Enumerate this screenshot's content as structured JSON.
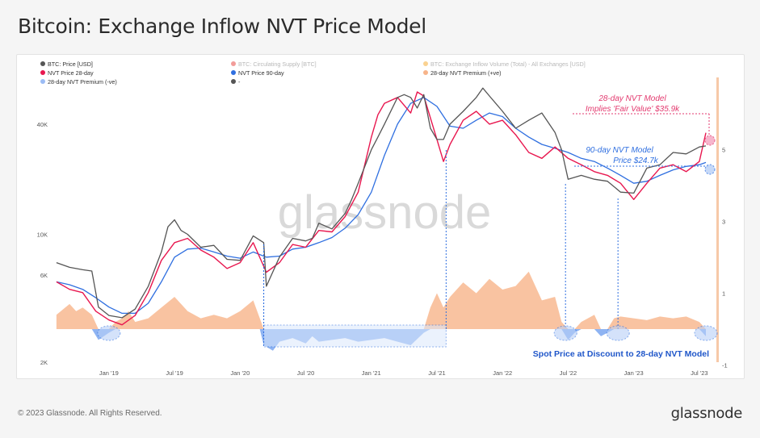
{
  "title": "Bitcoin: Exchange Inflow NVT Price Model",
  "footer": {
    "copyright": "© 2023 Glassnode. All Rights Reserved.",
    "brand": "glassnode"
  },
  "watermark": "glassnode",
  "colors": {
    "price": "#555555",
    "nvt28": "#e8174f",
    "nvt90": "#2f6fe0",
    "premium_pos": "#f7b48a",
    "premium_neg": "#7aa6f0",
    "annotation_red": "#e33a6f",
    "annotation_blue": "#2f6fe0"
  },
  "chart_data": {
    "type": "line",
    "x_ticks": [
      "Jan '19",
      "Jul '19",
      "Jan '20",
      "Jul '20",
      "Jan '21",
      "Jul '21",
      "Jan '22",
      "Jul '22",
      "Jan '23",
      "Jul '23"
    ],
    "y_left_ticks": [
      "2K",
      "6K",
      "10K",
      "40K"
    ],
    "y_right_ticks": [
      "-1",
      "1",
      "3",
      "5"
    ],
    "y_left_scale": "log",
    "legend": [
      {
        "label": "BTC: Price [USD]",
        "color": "#555555",
        "muted": false
      },
      {
        "label": "BTC: Circulating Supply [BTC]",
        "color": "#e53935",
        "muted": true
      },
      {
        "label": "BTC: Exchange Inflow Volume (Total) - All Exchanges [USD]",
        "color": "#f5a623",
        "muted": true
      },
      {
        "label": "NVT Price 28-day",
        "color": "#e8174f",
        "muted": false
      },
      {
        "label": "NVT Price 90-day",
        "color": "#2f6fe0",
        "muted": false
      },
      {
        "label": "28-day NVT Premium (+ve)",
        "color": "#f7b48a",
        "muted": false
      },
      {
        "label": "28-day NVT Premium (-ve)",
        "color": "#9bbcf5",
        "muted": false
      },
      {
        "label": "-",
        "color": "#555555",
        "muted": false
      }
    ],
    "annotations": {
      "nvt28_line1": "28-day NVT Model",
      "nvt28_line2": "Implies 'Fair Value' $35.9k",
      "nvt90_line1": "90-day NVT Model",
      "nvt90_line2": "Price $24.7k",
      "discount": "Spot Price at Discount to 28-day NVT Model"
    },
    "series": [
      {
        "name": "BTC: Price [USD]",
        "t": [
          2018.6,
          2018.7,
          2018.8,
          2018.87,
          2018.92,
          2019.0,
          2019.1,
          2019.2,
          2019.3,
          2019.4,
          2019.45,
          2019.5,
          2019.55,
          2019.6,
          2019.7,
          2019.8,
          2019.9,
          2020.0,
          2020.1,
          2020.18,
          2020.2,
          2020.3,
          2020.4,
          2020.5,
          2020.55,
          2020.6,
          2020.7,
          2020.8,
          2020.85,
          2020.9,
          2021.0,
          2021.05,
          2021.1,
          2021.2,
          2021.25,
          2021.3,
          2021.35,
          2021.4,
          2021.45,
          2021.5,
          2021.55,
          2021.6,
          2021.7,
          2021.8,
          2021.85,
          2021.9,
          2022.0,
          2022.1,
          2022.2,
          2022.3,
          2022.4,
          2022.45,
          2022.5,
          2022.6,
          2022.7,
          2022.8,
          2022.9,
          2023.0,
          2023.1,
          2023.2,
          2023.3,
          2023.4,
          2023.5,
          2023.55
        ],
        "values": [
          7000,
          6600,
          6400,
          6300,
          4000,
          3600,
          3500,
          3900,
          5200,
          8000,
          11000,
          12000,
          10500,
          10000,
          8500,
          8700,
          7300,
          7200,
          9800,
          9000,
          5200,
          7500,
          9500,
          9200,
          9500,
          11500,
          10700,
          13000,
          15500,
          19000,
          29000,
          34000,
          40000,
          56000,
          58000,
          56000,
          49000,
          58000,
          38000,
          33000,
          33000,
          40000,
          47000,
          56000,
          63000,
          57000,
          47000,
          38000,
          42000,
          46000,
          36000,
          29000,
          20000,
          21000,
          20000,
          19500,
          17000,
          16800,
          23000,
          24000,
          28000,
          27500,
          30000,
          30400
        ]
      },
      {
        "name": "NVT Price 28-day",
        "t": [
          2018.6,
          2018.7,
          2018.8,
          2018.9,
          2019.0,
          2019.1,
          2019.2,
          2019.3,
          2019.4,
          2019.5,
          2019.6,
          2019.7,
          2019.8,
          2019.9,
          2020.0,
          2020.1,
          2020.2,
          2020.3,
          2020.4,
          2020.5,
          2020.6,
          2020.7,
          2020.8,
          2020.9,
          2021.0,
          2021.05,
          2021.1,
          2021.2,
          2021.3,
          2021.35,
          2021.4,
          2021.5,
          2021.55,
          2021.6,
          2021.7,
          2021.8,
          2021.9,
          2022.0,
          2022.1,
          2022.2,
          2022.3,
          2022.4,
          2022.5,
          2022.6,
          2022.7,
          2022.8,
          2022.9,
          2023.0,
          2023.1,
          2023.2,
          2023.3,
          2023.4,
          2023.5,
          2023.55
        ],
        "values": [
          5500,
          5000,
          4800,
          3800,
          3400,
          3200,
          3600,
          4800,
          7200,
          9000,
          9500,
          8200,
          7500,
          6500,
          7000,
          9000,
          6200,
          7000,
          8800,
          8500,
          10500,
          10300,
          12500,
          17000,
          34000,
          45000,
          52000,
          56000,
          46000,
          60000,
          57000,
          33000,
          25000,
          31000,
          42000,
          47000,
          40000,
          42000,
          35000,
          28000,
          26000,
          30000,
          26000,
          24000,
          22000,
          21000,
          19000,
          15500,
          19000,
          23000,
          24000,
          22000,
          25000,
          35900
        ]
      },
      {
        "name": "NVT Price 90-day",
        "t": [
          2018.6,
          2018.7,
          2018.8,
          2018.9,
          2019.0,
          2019.1,
          2019.2,
          2019.3,
          2019.4,
          2019.5,
          2019.6,
          2019.7,
          2019.8,
          2019.9,
          2020.0,
          2020.1,
          2020.2,
          2020.3,
          2020.4,
          2020.5,
          2020.6,
          2020.7,
          2020.8,
          2020.9,
          2021.0,
          2021.1,
          2021.2,
          2021.3,
          2021.4,
          2021.5,
          2021.6,
          2021.7,
          2021.8,
          2021.9,
          2022.0,
          2022.1,
          2022.2,
          2022.3,
          2022.4,
          2022.5,
          2022.6,
          2022.7,
          2022.8,
          2022.9,
          2023.0,
          2023.1,
          2023.2,
          2023.3,
          2023.4,
          2023.5,
          2023.55
        ],
        "values": [
          5500,
          5300,
          5000,
          4500,
          4000,
          3700,
          3700,
          4200,
          5500,
          7500,
          8300,
          8400,
          8000,
          7600,
          7400,
          8000,
          7500,
          7600,
          8300,
          8500,
          9000,
          9600,
          10800,
          12800,
          17000,
          27000,
          40000,
          52000,
          56000,
          50000,
          39000,
          38000,
          42000,
          46000,
          44000,
          38000,
          34000,
          31000,
          29500,
          28000,
          26000,
          25000,
          23000,
          21000,
          19000,
          19500,
          21000,
          22500,
          23500,
          24000,
          24700
        ]
      },
      {
        "name": "28-day NVT Premium",
        "t": [
          2018.6,
          2018.7,
          2018.75,
          2018.8,
          2018.87,
          2018.92,
          2019.0,
          2019.05,
          2019.1,
          2019.15,
          2019.2,
          2019.3,
          2019.4,
          2019.5,
          2019.6,
          2019.7,
          2019.8,
          2019.9,
          2020.0,
          2020.1,
          2020.15,
          2020.18,
          2020.25,
          2020.3,
          2020.4,
          2020.5,
          2020.55,
          2020.6,
          2020.7,
          2020.8,
          2020.9,
          2021.0,
          2021.1,
          2021.2,
          2021.3,
          2021.4,
          2021.45,
          2021.5,
          2021.55,
          2021.6,
          2021.7,
          2021.8,
          2021.9,
          2022.0,
          2022.1,
          2022.2,
          2022.3,
          2022.4,
          2022.45,
          2022.5,
          2022.55,
          2022.6,
          2022.7,
          2022.75,
          2022.8,
          2022.85,
          2022.9,
          2023.0,
          2023.1,
          2023.2,
          2023.3,
          2023.4,
          2023.5,
          2023.55
        ],
        "values": [
          0.4,
          0.7,
          0.5,
          0.6,
          0.4,
          -0.3,
          -0.1,
          0.2,
          0.3,
          0.5,
          0.2,
          0.3,
          0.6,
          0.9,
          0.5,
          0.3,
          0.4,
          0.3,
          0.5,
          0.8,
          0.3,
          -0.45,
          -0.6,
          -0.35,
          -0.25,
          -0.4,
          -0.2,
          -0.35,
          -0.3,
          -0.25,
          -0.35,
          -0.3,
          -0.25,
          -0.35,
          -0.45,
          -0.1,
          0.6,
          1.0,
          0.6,
          0.9,
          1.3,
          1.0,
          1.4,
          1.1,
          1.2,
          1.6,
          0.8,
          0.9,
          0.2,
          -0.3,
          -0.1,
          0.2,
          0.4,
          -0.2,
          -0.1,
          0.3,
          0.35,
          0.3,
          0.25,
          0.35,
          0.3,
          0.35,
          0.2,
          -0.2
        ]
      }
    ]
  }
}
